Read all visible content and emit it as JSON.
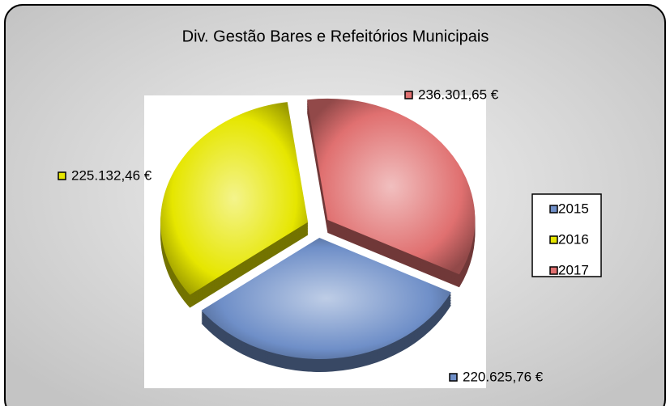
{
  "chart_data": {
    "type": "pie",
    "title": "Div. Gestão Bares e Refeitórios Municipais",
    "categories": [
      "2015",
      "2016",
      "2017"
    ],
    "values": [
      220625.76,
      225132.46,
      236301.65
    ],
    "value_labels": [
      "220.625,76 €",
      "225.132,46 €",
      "236.301,65 €"
    ],
    "colors": [
      "#6f8fc8",
      "#e6e600",
      "#e07070"
    ],
    "legend": "right"
  }
}
